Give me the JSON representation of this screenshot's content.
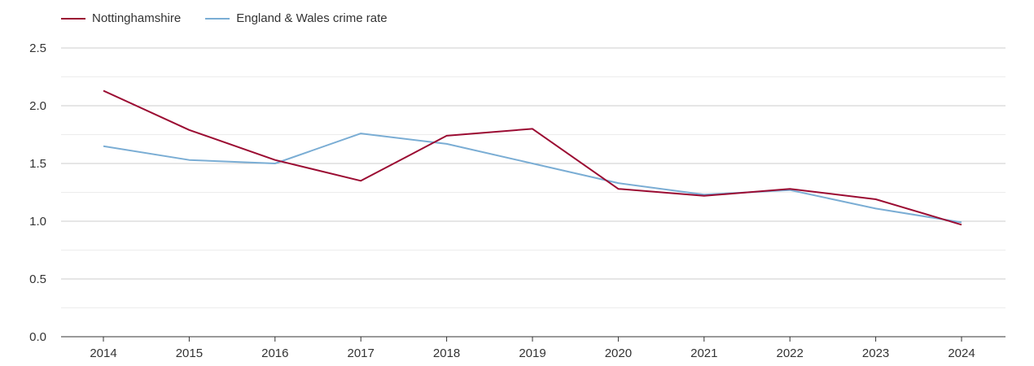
{
  "chart_data": {
    "type": "line",
    "title": "",
    "xlabel": "",
    "ylabel": "",
    "x": [
      "2014",
      "2015",
      "2016",
      "2017",
      "2018",
      "2019",
      "2020",
      "2021",
      "2022",
      "2023",
      "2024"
    ],
    "series": [
      {
        "name": "Nottinghamshire",
        "color": "#9b0b32",
        "values": [
          2.13,
          1.79,
          1.53,
          1.35,
          1.74,
          1.8,
          1.28,
          1.22,
          1.28,
          1.19,
          0.97
        ]
      },
      {
        "name": "England & Wales crime rate",
        "color": "#7aadd4",
        "values": [
          1.65,
          1.53,
          1.5,
          1.76,
          1.67,
          1.5,
          1.33,
          1.23,
          1.27,
          1.11,
          0.99
        ]
      }
    ],
    "ylim": [
      0,
      2.5
    ],
    "yticks": [
      "0.0",
      "0.5",
      "1.0",
      "1.5",
      "2.0",
      "2.5"
    ],
    "grid": true,
    "legend_position": "top-left"
  }
}
